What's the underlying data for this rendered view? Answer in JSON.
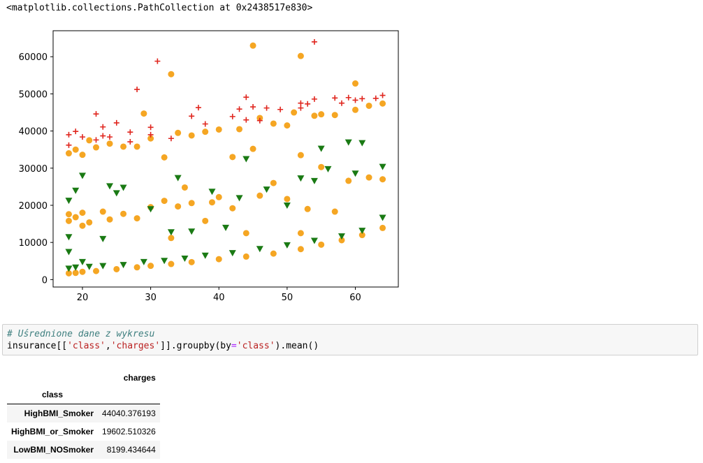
{
  "output_text": "<matplotlib.collections.PathCollection at 0x2438517e830>",
  "chart_data": {
    "type": "scatter",
    "xlim": [
      15.7,
      66.3
    ],
    "ylim": [
      -2000,
      67000
    ],
    "xticks": [
      20,
      30,
      40,
      50,
      60
    ],
    "yticks": [
      0,
      10000,
      20000,
      30000,
      40000,
      50000,
      60000
    ],
    "grid": false,
    "colors": {
      "orange": "#f5a623",
      "green": "#1a7a14",
      "red": "#e0261e"
    },
    "series": [
      {
        "marker": "circle",
        "color": "#f5a623",
        "points": [
          [
            18,
            1700
          ],
          [
            19,
            1800
          ],
          [
            20,
            2100
          ],
          [
            22,
            2300
          ],
          [
            25,
            2800
          ],
          [
            28,
            3300
          ],
          [
            30,
            3700
          ],
          [
            33,
            4200
          ],
          [
            36,
            4700
          ],
          [
            40,
            5500
          ],
          [
            44,
            6200
          ],
          [
            48,
            7000
          ],
          [
            52,
            8200
          ],
          [
            55,
            9400
          ],
          [
            58,
            10600
          ],
          [
            61,
            12000
          ],
          [
            64,
            13900
          ],
          [
            18,
            15800
          ],
          [
            18,
            17600
          ],
          [
            19,
            16800
          ],
          [
            20,
            14500
          ],
          [
            20,
            18000
          ],
          [
            21,
            15400
          ],
          [
            23,
            18300
          ],
          [
            24,
            16200
          ],
          [
            26,
            17700
          ],
          [
            28,
            16500
          ],
          [
            30,
            19500
          ],
          [
            32,
            21200
          ],
          [
            33,
            11200
          ],
          [
            34,
            19700
          ],
          [
            35,
            24800
          ],
          [
            36,
            20600
          ],
          [
            38,
            15800
          ],
          [
            39,
            20800
          ],
          [
            40,
            22200
          ],
          [
            42,
            19200
          ],
          [
            44,
            12500
          ],
          [
            46,
            22600
          ],
          [
            48,
            26000
          ],
          [
            50,
            21700
          ],
          [
            52,
            12500
          ],
          [
            53,
            19000
          ],
          [
            55,
            30300
          ],
          [
            57,
            18300
          ],
          [
            59,
            26600
          ],
          [
            62,
            27500
          ],
          [
            64,
            27000
          ],
          [
            18,
            34000
          ],
          [
            19,
            35000
          ],
          [
            20,
            33600
          ],
          [
            21,
            37500
          ],
          [
            22,
            35600
          ],
          [
            24,
            36600
          ],
          [
            26,
            35800
          ],
          [
            28,
            35800
          ],
          [
            29,
            44700
          ],
          [
            30,
            38000
          ],
          [
            32,
            32900
          ],
          [
            33,
            55300
          ],
          [
            34,
            39500
          ],
          [
            36,
            38800
          ],
          [
            38,
            39800
          ],
          [
            40,
            40400
          ],
          [
            42,
            33000
          ],
          [
            43,
            40500
          ],
          [
            45,
            63000
          ],
          [
            45,
            35200
          ],
          [
            46,
            43500
          ],
          [
            48,
            42000
          ],
          [
            50,
            41500
          ],
          [
            51,
            45000
          ],
          [
            52,
            60200
          ],
          [
            52,
            33500
          ],
          [
            54,
            44100
          ],
          [
            55,
            44500
          ],
          [
            57,
            44300
          ],
          [
            60,
            52800
          ],
          [
            60,
            45700
          ],
          [
            62,
            46800
          ],
          [
            64,
            47400
          ]
        ]
      },
      {
        "marker": "triangle-down",
        "color": "#1a7a14",
        "points": [
          [
            18,
            3000
          ],
          [
            19,
            3300
          ],
          [
            20,
            4800
          ],
          [
            21,
            3500
          ],
          [
            23,
            3700
          ],
          [
            26,
            4000
          ],
          [
            29,
            4800
          ],
          [
            32,
            5100
          ],
          [
            35,
            5700
          ],
          [
            38,
            6500
          ],
          [
            42,
            7200
          ],
          [
            46,
            8300
          ],
          [
            50,
            9300
          ],
          [
            54,
            10500
          ],
          [
            58,
            11700
          ],
          [
            61,
            13200
          ],
          [
            64,
            16700
          ],
          [
            18,
            7500
          ],
          [
            18,
            11500
          ],
          [
            18,
            21300
          ],
          [
            19,
            24000
          ],
          [
            20,
            28000
          ],
          [
            23,
            11000
          ],
          [
            24,
            25200
          ],
          [
            25,
            23300
          ],
          [
            26,
            24800
          ],
          [
            30,
            19000
          ],
          [
            33,
            12800
          ],
          [
            34,
            27400
          ],
          [
            36,
            13000
          ],
          [
            39,
            23700
          ],
          [
            41,
            14000
          ],
          [
            43,
            22000
          ],
          [
            44,
            32500
          ],
          [
            47,
            24300
          ],
          [
            50,
            20000
          ],
          [
            52,
            27300
          ],
          [
            54,
            26600
          ],
          [
            55,
            35300
          ],
          [
            56,
            29800
          ],
          [
            59,
            37000
          ],
          [
            60,
            28600
          ],
          [
            61,
            36800
          ],
          [
            64,
            30400
          ]
        ]
      },
      {
        "marker": "plus",
        "color": "#e0261e",
        "points": [
          [
            18,
            39000
          ],
          [
            18,
            36200
          ],
          [
            19,
            39900
          ],
          [
            20,
            38400
          ],
          [
            22,
            44600
          ],
          [
            22,
            37600
          ],
          [
            23,
            41100
          ],
          [
            23,
            38700
          ],
          [
            24,
            38400
          ],
          [
            25,
            42200
          ],
          [
            27,
            39700
          ],
          [
            27,
            37100
          ],
          [
            28,
            51200
          ],
          [
            30,
            41000
          ],
          [
            30,
            39000
          ],
          [
            31,
            58800
          ],
          [
            33,
            38000
          ],
          [
            36,
            44000
          ],
          [
            37,
            46300
          ],
          [
            38,
            41900
          ],
          [
            42,
            43900
          ],
          [
            43,
            45900
          ],
          [
            44,
            49100
          ],
          [
            44,
            43000
          ],
          [
            45,
            46500
          ],
          [
            46,
            42800
          ],
          [
            47,
            46200
          ],
          [
            49,
            45800
          ],
          [
            52,
            47500
          ],
          [
            52,
            46200
          ],
          [
            53,
            47300
          ],
          [
            54,
            64000
          ],
          [
            54,
            48600
          ],
          [
            57,
            48900
          ],
          [
            58,
            47500
          ],
          [
            59,
            49000
          ],
          [
            60,
            48300
          ],
          [
            61,
            48700
          ],
          [
            63,
            48800
          ],
          [
            64,
            49600
          ]
        ]
      }
    ]
  },
  "code": {
    "comment": "# Uśrednione dane z wykresu",
    "tokens": [
      {
        "t": "insurance[[",
        "c": "plain"
      },
      {
        "t": "'class'",
        "c": "str"
      },
      {
        "t": ",",
        "c": "plain"
      },
      {
        "t": "'charges'",
        "c": "str"
      },
      {
        "t": "]].groupby(by",
        "c": "plain"
      },
      {
        "t": "=",
        "c": "op"
      },
      {
        "t": "'class'",
        "c": "str"
      },
      {
        "t": ").mean()",
        "c": "plain"
      }
    ]
  },
  "table": {
    "column_header": "charges",
    "index_name": "class",
    "rows": [
      {
        "label": "HighBMI_Smoker",
        "value": "44040.376193"
      },
      {
        "label": "HighBMI_or_Smoker",
        "value": "19602.510326"
      },
      {
        "label": "LowBMI_NOSmoker",
        "value": "8199.434644"
      }
    ]
  }
}
